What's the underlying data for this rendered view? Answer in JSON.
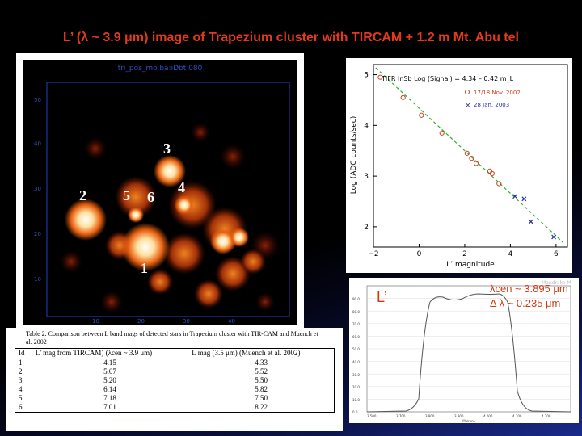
{
  "title": "L’ (λ ~ 3.9 μm) image of Trapezium cluster with TIRCAM + 1.2 m Mt. Abu tel",
  "ir_image": {
    "caption": "tri_pos_mo.ba:iDbt 080",
    "y_ticks": [
      "50",
      "40",
      "30",
      "20",
      "10"
    ],
    "x_ticks": [
      "10",
      "20",
      "30",
      "40"
    ],
    "star_labels": [
      "3",
      "2",
      "5",
      "6",
      "4",
      "1"
    ]
  },
  "plot": {
    "legend_title": "TIFR InSb   Log (Signal) = 4.34 – 0.42 m_L",
    "legend_series": [
      {
        "marker": "o",
        "label": "17/18 Nov. 2002",
        "color": "#d04020"
      },
      {
        "marker": "×",
        "label": "28 Jan. 2003",
        "color": "#2030a0"
      }
    ],
    "xlabel": "L’ magnitude",
    "ylabel": "Log (ADC counts/sec)"
  },
  "chart_data": {
    "type": "scatter",
    "xlabel": "L’ magnitude",
    "ylabel": "Log (ADC counts/sec)",
    "xlim": [
      -2,
      6.5
    ],
    "ylim": [
      1.6,
      5.2
    ],
    "x_ticks": [
      -2,
      0,
      2,
      4,
      6
    ],
    "y_ticks": [
      2,
      3,
      4,
      5
    ],
    "fit": {
      "label": "Log (Signal) = 4.34 – 0.42 m_L",
      "intercept": 4.34,
      "slope": -0.42,
      "x_range": [
        -1.9,
        6.3
      ]
    },
    "series": [
      {
        "name": "17/18 Nov. 2002",
        "marker": "circle",
        "x": [
          -1.7,
          -0.7,
          0.1,
          1.0,
          2.1,
          2.3,
          2.5,
          3.1,
          3.2,
          3.5
        ],
        "y": [
          4.95,
          4.55,
          4.2,
          3.85,
          3.45,
          3.35,
          3.25,
          3.1,
          3.05,
          2.85
        ]
      },
      {
        "name": "28 Jan. 2003",
        "marker": "x",
        "x": [
          4.2,
          4.6,
          4.9,
          5.9
        ],
        "y": [
          2.6,
          2.55,
          2.1,
          1.8
        ]
      }
    ]
  },
  "filter": {
    "band_label": "L’",
    "lambda_cen": "λcen ~ 3.895 μm",
    "delta_lambda": "Δ λ ~ 0.235 μm",
    "y_ticks": [
      "90.0",
      "80.0",
      "70.0",
      "60.0",
      "50.0",
      "40.0",
      "30.0",
      "20.0",
      "10.0",
      "0.0"
    ],
    "x_ticks": [
      "3.500",
      "3.700",
      "3.800",
      "3.900",
      "4.000",
      "4.100",
      "4.200"
    ],
    "x_axis_label": "Microns",
    "corner_text": "Mandrake M"
  },
  "table": {
    "caption": "Table 2. Comparison between L band mags of detected stars in Trapezium cluster with TIR-CAM and Muench et al. 2002",
    "headers": [
      "Id",
      "L’ mag from TIRCAM) (λcen ~ 3.9 μm)",
      "L mag (3.5 μm) (Muench et al. 2002)"
    ],
    "rows": [
      [
        "1",
        "4.15",
        "4.33"
      ],
      [
        "2",
        "5.07",
        "5.52"
      ],
      [
        "3",
        "5.20",
        "5.50"
      ],
      [
        "4",
        "6.14",
        "5.82"
      ],
      [
        "5",
        "7.18",
        "7.50"
      ],
      [
        "6",
        "7.01",
        "8.22"
      ]
    ]
  }
}
